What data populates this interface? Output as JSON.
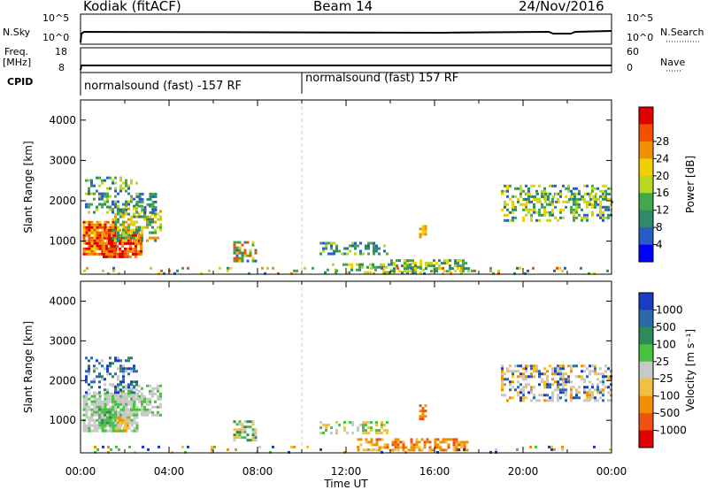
{
  "header": {
    "station": "Kodiak (fitACF)",
    "beam": "Beam 14",
    "date": "24/Nov/2016"
  },
  "noise_strip": {
    "left_label": "N.Sky",
    "right_label": "N.Search",
    "left_ticks": [
      "10^5",
      "10^0"
    ],
    "right_ticks": [
      "10^5",
      "10^0"
    ]
  },
  "freq_strip": {
    "left_label_1": "Freq.",
    "left_label_2": "[MHz]",
    "right_label": "Nave",
    "left_ticks": [
      "18",
      "8"
    ],
    "right_ticks": [
      "60",
      "0"
    ]
  },
  "cpid": {
    "label": "CPID",
    "segments": [
      {
        "name": "normalsound (fast) -157 RF",
        "start_hour": 0.0
      },
      {
        "name": "normalsound (fast) 157 RF",
        "start_hour": 10.0
      }
    ]
  },
  "chart_data": [
    {
      "type": "heatmap",
      "quantity": "Power",
      "xlabel": "",
      "ylabel": "Slant Range [km]",
      "colorbar_label": "Power [dB]",
      "ylim": [
        180,
        4500
      ],
      "xlim_hours": [
        0,
        24
      ],
      "y_ticks": [
        1000,
        2000,
        3000,
        4000
      ],
      "colorbar_ticks": [
        4,
        8,
        12,
        16,
        20,
        24,
        28
      ],
      "colorscale": [
        "#0000ff",
        "#2a5cc8",
        "#2f8a6a",
        "#44a84a",
        "#b8d820",
        "#f0d000",
        "#f09000",
        "#f05000",
        "#e00000"
      ]
    },
    {
      "type": "heatmap",
      "quantity": "Velocity",
      "xlabel": "Time UT",
      "ylabel": "Slant Range [km]",
      "colorbar_label": "Velocity [m s⁻¹]",
      "ylim": [
        180,
        4500
      ],
      "xlim_hours": [
        0,
        24
      ],
      "y_ticks": [
        1000,
        2000,
        3000,
        4000
      ],
      "x_ticks": [
        "00:00",
        "04:00",
        "08:00",
        "12:00",
        "16:00",
        "20:00",
        "00:00"
      ],
      "colorbar_ticks": [
        "1000",
        "500",
        "100",
        "25",
        "-25",
        "-100",
        "-500",
        "-1000"
      ],
      "colorscale": [
        "#1a3cc0",
        "#2a6aa8",
        "#2f8a5a",
        "#48c040",
        "#c8c8c8",
        "#f0c040",
        "#f09000",
        "#f05010",
        "#e00000"
      ]
    }
  ],
  "scatter_regions": {
    "power": [
      {
        "t": [
          0.1,
          1.6
        ],
        "r": [
          700,
          1500
        ],
        "c": [
          7,
          8,
          6,
          5
        ],
        "d": 0.85
      },
      {
        "t": [
          1.0,
          2.8
        ],
        "r": [
          600,
          1300
        ],
        "c": [
          8,
          7,
          6
        ],
        "d": 0.8
      },
      {
        "t": [
          1.4,
          3.6
        ],
        "r": [
          1000,
          1900
        ],
        "c": [
          5,
          4,
          6,
          2,
          3
        ],
        "d": 0.55
      },
      {
        "t": [
          0.2,
          2.6
        ],
        "r": [
          1700,
          2600
        ],
        "c": [
          1,
          2,
          3,
          4
        ],
        "d": 0.35
      },
      {
        "t": [
          2.5,
          3.4
        ],
        "r": [
          1700,
          2200
        ],
        "c": [
          2,
          1,
          3
        ],
        "d": 0.5
      },
      {
        "t": [
          6.9,
          7.9
        ],
        "r": [
          500,
          1000
        ],
        "c": [
          7,
          5,
          2,
          1,
          3
        ],
        "d": 0.55
      },
      {
        "t": [
          10.8,
          13.8
        ],
        "r": [
          700,
          980
        ],
        "c": [
          1,
          2,
          3,
          4
        ],
        "d": 0.45
      },
      {
        "t": [
          11.0,
          15.5
        ],
        "r": [
          200,
          450
        ],
        "c": [
          4,
          3,
          2,
          5
        ],
        "d": 0.4
      },
      {
        "t": [
          14.0,
          17.5
        ],
        "r": [
          250,
          550
        ],
        "c": [
          4,
          3,
          5,
          2
        ],
        "d": 0.55
      },
      {
        "t": [
          15.3,
          15.6
        ],
        "r": [
          1000,
          1400
        ],
        "c": [
          6,
          5
        ],
        "d": 0.6
      },
      {
        "t": [
          19.0,
          24.0
        ],
        "r": [
          1500,
          2400
        ],
        "c": [
          1,
          2,
          3,
          4,
          5
        ],
        "d": 0.45
      },
      {
        "t": [
          20.0,
          24.0
        ],
        "r": [
          2000,
          2200
        ],
        "c": [
          2,
          4,
          5
        ],
        "d": 0.35
      },
      {
        "t": [
          0.0,
          24.0
        ],
        "r": [
          180,
          360
        ],
        "c": [
          1,
          2,
          3,
          4,
          5,
          6,
          7
        ],
        "d": 0.12
      }
    ],
    "velocity": [
      {
        "t": [
          0.1,
          2.6
        ],
        "r": [
          700,
          1700
        ],
        "c": [
          4,
          4,
          4,
          3
        ],
        "d": 0.8
      },
      {
        "t": [
          0.8,
          1.6
        ],
        "r": [
          850,
          1300
        ],
        "c": [
          3,
          2,
          3
        ],
        "d": 0.8
      },
      {
        "t": [
          1.6,
          2.2
        ],
        "r": [
          750,
          1100
        ],
        "c": [
          5,
          6
        ],
        "d": 0.7
      },
      {
        "t": [
          1.4,
          3.6
        ],
        "r": [
          1100,
          1900
        ],
        "c": [
          4,
          4,
          3
        ],
        "d": 0.6
      },
      {
        "t": [
          0.2,
          2.6
        ],
        "r": [
          1700,
          2600
        ],
        "c": [
          4,
          1,
          0,
          2
        ],
        "d": 0.35
      },
      {
        "t": [
          6.9,
          7.9
        ],
        "r": [
          500,
          1000
        ],
        "c": [
          2,
          3,
          4,
          5
        ],
        "d": 0.5
      },
      {
        "t": [
          10.8,
          13.8
        ],
        "r": [
          700,
          980
        ],
        "c": [
          4,
          3,
          5
        ],
        "d": 0.45
      },
      {
        "t": [
          12.5,
          17.5
        ],
        "r": [
          250,
          550
        ],
        "c": [
          6,
          5,
          6,
          7
        ],
        "d": 0.6
      },
      {
        "t": [
          15.3,
          15.6
        ],
        "r": [
          1000,
          1400
        ],
        "c": [
          6,
          7
        ],
        "d": 0.6
      },
      {
        "t": [
          19.0,
          24.0
        ],
        "r": [
          1500,
          2400
        ],
        "c": [
          4,
          4,
          1,
          0,
          5,
          6
        ],
        "d": 0.45
      },
      {
        "t": [
          0.0,
          24.0
        ],
        "r": [
          180,
          360
        ],
        "c": [
          4,
          5,
          3,
          6,
          0
        ],
        "d": 0.12
      }
    ]
  },
  "plot_colors": {
    "background": "#ffffff",
    "axis": "#000000",
    "dashed_marker": "#cfcfcf"
  }
}
